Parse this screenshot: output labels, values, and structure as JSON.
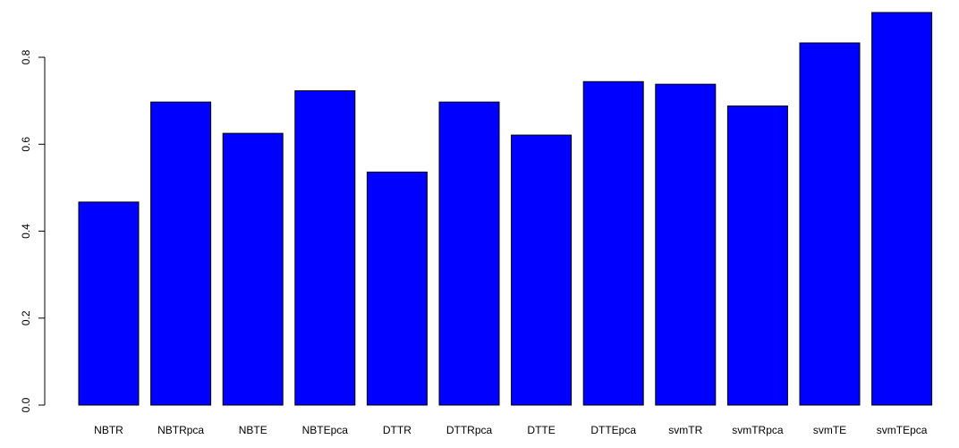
{
  "chart_data": {
    "type": "bar",
    "title": "",
    "xlabel": "",
    "ylabel": "",
    "categories": [
      "NBTR",
      "NBTRpca",
      "NBTE",
      "NBTEpca",
      "DTTR",
      "DTTRpca",
      "DTTE",
      "DTTEpca",
      "svmTR",
      "svmTRpca",
      "svmTE",
      "svmTEpca"
    ],
    "values": [
      0.467,
      0.697,
      0.625,
      0.723,
      0.536,
      0.697,
      0.621,
      0.744,
      0.738,
      0.688,
      0.833,
      0.903
    ],
    "ylim": [
      0,
      0.905
    ],
    "yticks": [
      0.0,
      0.2,
      0.4,
      0.6,
      0.8
    ],
    "ytick_labels": [
      "0.0",
      "0.2",
      "0.4",
      "0.6",
      "0.8"
    ],
    "bar_color": "#0000ff",
    "border_color": "#000000",
    "grid": false,
    "legend": "none"
  }
}
